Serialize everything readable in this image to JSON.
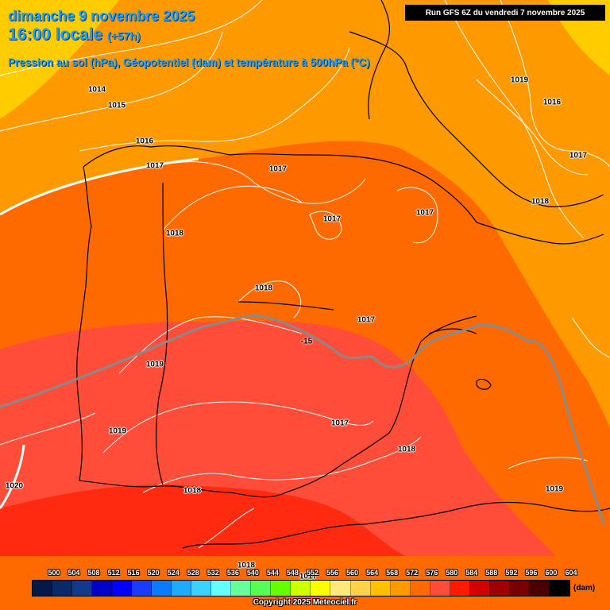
{
  "header": {
    "date": "dimanche 9 novembre 2025",
    "time": "16:00 locale",
    "offset": "(+57h)",
    "description": "Pression au sol (hPa), Géopotentiel (dam) et température à 500hPa (°C)",
    "run": "Run GFS 6Z du vendredi 7 novembre 2025"
  },
  "colors": {
    "band_552_556": "#ffe066",
    "band_564_568": "#ff9900",
    "band_568_572": "#ff6a00",
    "band_572_576": "#ff4d3a",
    "band_576_580": "#ff2a10",
    "isobar": "#ffffff",
    "coastline": "#000000",
    "isotherm": "#888888"
  },
  "pressure_labels": [
    {
      "text": "1014"
    },
    {
      "text": "1015"
    },
    {
      "text": "1016"
    },
    {
      "text": "1017"
    },
    {
      "text": "1018"
    },
    {
      "text": "1017"
    },
    {
      "text": "1017"
    },
    {
      "text": "1017"
    },
    {
      "text": "1018"
    },
    {
      "text": "1017"
    },
    {
      "text": "1019"
    },
    {
      "text": "1019"
    },
    {
      "text": "1020"
    },
    {
      "text": "1017"
    },
    {
      "text": "1018"
    },
    {
      "text": "1018"
    },
    {
      "text": "1019"
    },
    {
      "text": "1018"
    },
    {
      "text": "1019"
    },
    {
      "text": "1016"
    },
    {
      "text": "1017"
    },
    {
      "text": "1018"
    },
    {
      "text": "1017"
    }
  ],
  "isotherm_label": "-15",
  "legend": {
    "values": [
      "500",
      "504",
      "508",
      "512",
      "516",
      "520",
      "524",
      "528",
      "532",
      "536",
      "540",
      "544",
      "548",
      "552",
      "556",
      "560",
      "564",
      "568",
      "572",
      "576",
      "580",
      "584",
      "588",
      "592",
      "596",
      "600",
      "604"
    ],
    "colors": [
      "#05184a",
      "#0a2a66",
      "#123a8c",
      "#0000c8",
      "#0000ff",
      "#1a3cff",
      "#0a7aff",
      "#1eaaff",
      "#3cd2ff",
      "#66ffff",
      "#66ff99",
      "#55ff55",
      "#66ff00",
      "#ccff00",
      "#ffff00",
      "#ffe97a",
      "#ffd24a",
      "#ffc000",
      "#ff9900",
      "#ff6a00",
      "#ff4d3a",
      "#ff1a00",
      "#d40000",
      "#a00000",
      "#780000",
      "#4a0000",
      "#000000"
    ],
    "unit": "(dam)"
  },
  "copyright": "Copyright 2025 Meteociel.fr"
}
